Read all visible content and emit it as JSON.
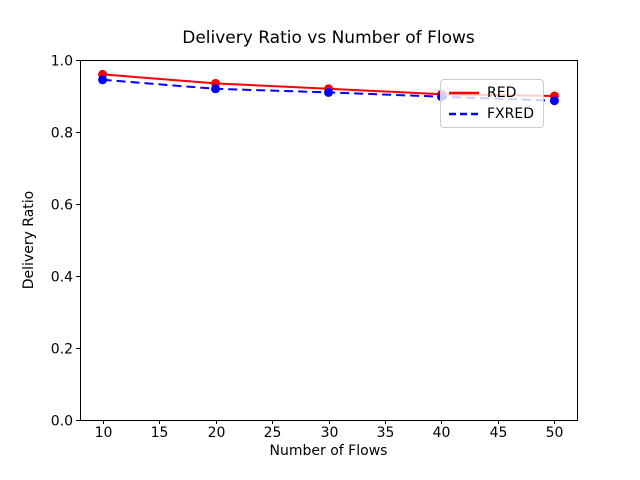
{
  "chart_data": {
    "type": "line",
    "title": "Delivery Ratio vs Number of Flows",
    "xlabel": "Number of Flows",
    "ylabel": "Delivery Ratio",
    "x": [
      10,
      20,
      30,
      40,
      50
    ],
    "series": [
      {
        "name": "RED",
        "values": [
          0.96,
          0.935,
          0.92,
          0.905,
          0.9
        ],
        "color": "#ff0000",
        "line_style": "solid",
        "marker": "circle"
      },
      {
        "name": "FXRED",
        "values": [
          0.945,
          0.92,
          0.91,
          0.898,
          0.887
        ],
        "color": "#0000ff",
        "line_style": "dashed",
        "marker": "circle"
      }
    ],
    "xlim": [
      8,
      52
    ],
    "ylim": [
      0.0,
      1.0
    ],
    "x_ticks": [
      10,
      15,
      20,
      25,
      30,
      35,
      40,
      45,
      50
    ],
    "y_ticks": [
      "0.0",
      "0.2",
      "0.4",
      "0.6",
      "0.8",
      "1.0"
    ],
    "grid": false,
    "legend_position": "upper right",
    "colors": {
      "axis": "#000000",
      "background": "#ffffff",
      "legend_border": "#cccccc",
      "text": "#000000"
    }
  }
}
